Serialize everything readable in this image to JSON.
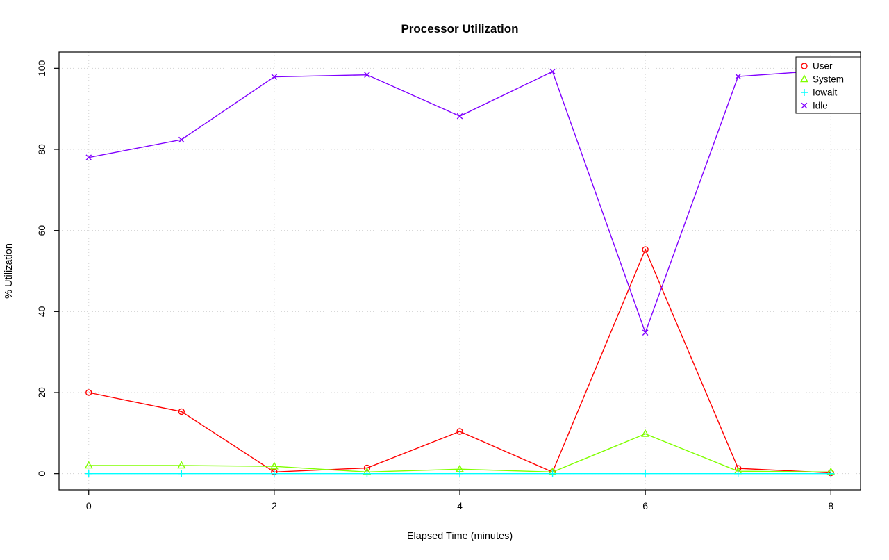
{
  "chart_data": {
    "type": "line",
    "title": "Processor Utilization",
    "xlabel": "Elapsed Time (minutes)",
    "ylabel": "% Utilization",
    "x": [
      0,
      1,
      2,
      3,
      4,
      5,
      6,
      7,
      8
    ],
    "xlim": [
      0,
      8
    ],
    "ylim": [
      0,
      100
    ],
    "x_ticks": [
      0,
      2,
      4,
      6,
      8
    ],
    "y_ticks": [
      0,
      20,
      40,
      60,
      80,
      100
    ],
    "grid": true,
    "grid_style": "dotted",
    "grid_color": "#d3d3d3",
    "legend_position": "top-right",
    "legend_entries": [
      "User",
      "System",
      "Iowait",
      "Idle"
    ],
    "series": [
      {
        "name": "User",
        "color": "#ff0000",
        "marker": "circle",
        "values": [
          20,
          15.3,
          0.4,
          1.4,
          10.4,
          0.4,
          55.3,
          1.3,
          0.2
        ]
      },
      {
        "name": "System",
        "color": "#80ff00",
        "marker": "triangle",
        "values": [
          2,
          2,
          1.8,
          0.4,
          1.1,
          0.4,
          9.8,
          0.6,
          0.4
        ]
      },
      {
        "name": "Iowait",
        "color": "#00ffff",
        "marker": "plus",
        "values": [
          0,
          0,
          0,
          0,
          0,
          0,
          0,
          0,
          0
        ]
      },
      {
        "name": "Idle",
        "color": "#8000ff",
        "marker": "x",
        "values": [
          78,
          82.4,
          97.9,
          98.4,
          88.2,
          99.2,
          34.8,
          98,
          99.6
        ]
      }
    ]
  }
}
